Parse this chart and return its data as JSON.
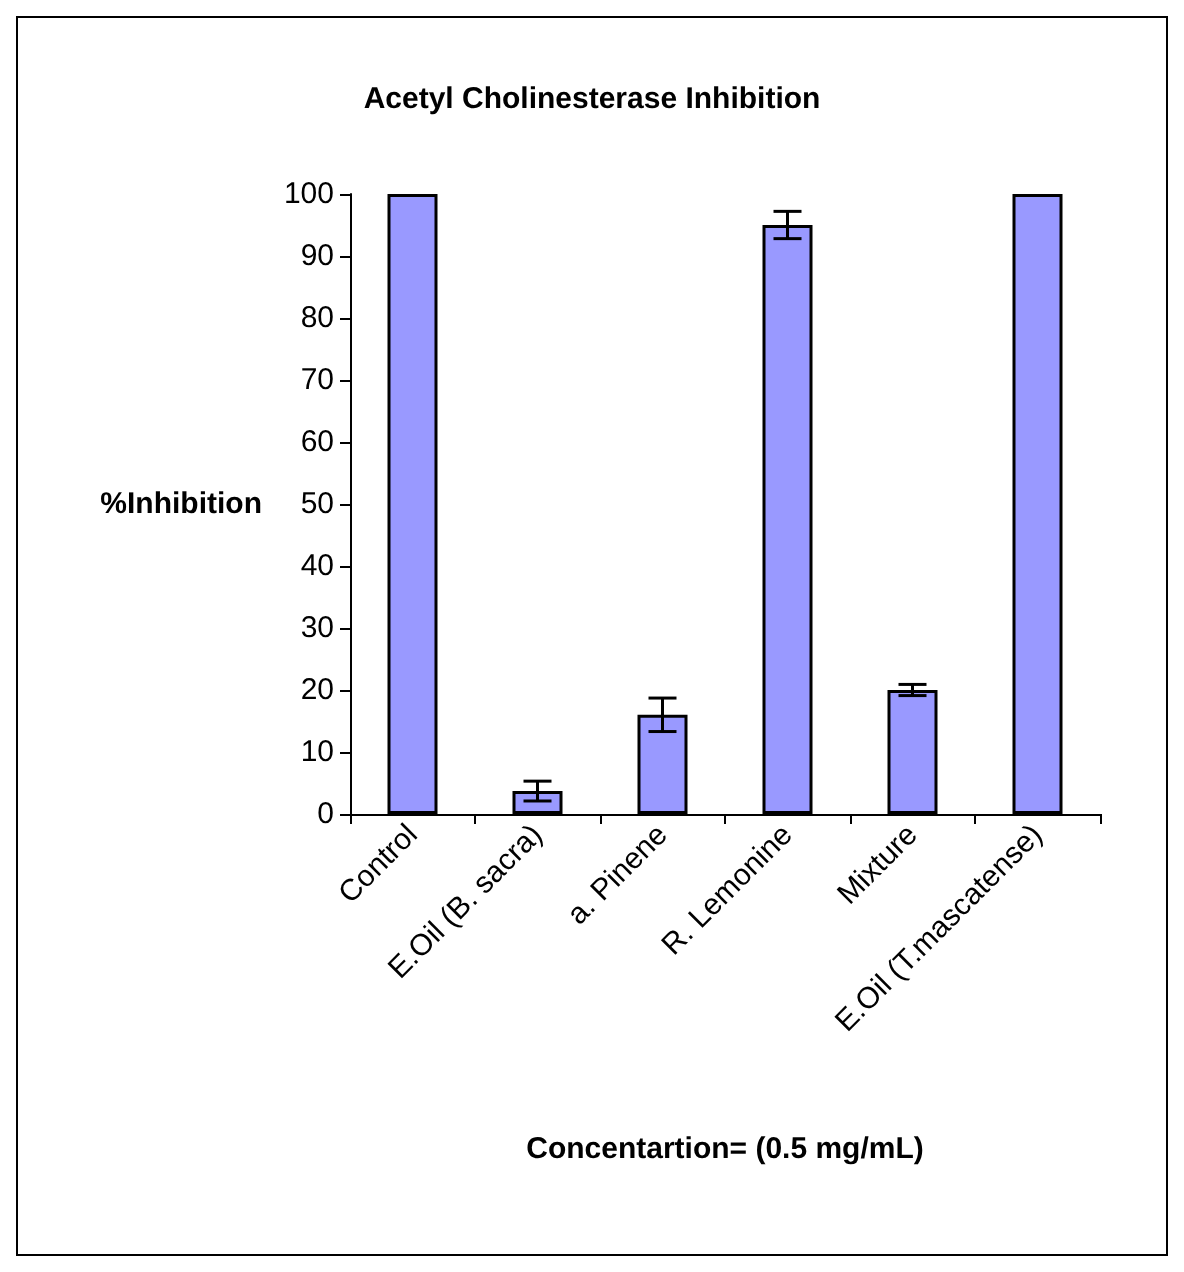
{
  "chart_data": {
    "type": "bar",
    "title": "Acetyl Cholinesterase Inhibition",
    "xlabel": "Concentartion= (0.5 mg/mL)",
    "ylabel": "%Inhibition",
    "categories": [
      "Control",
      "E.Oil (B. sacra)",
      "a. Pinene",
      "R. Lemonine",
      "Mixture",
      "E.Oil (T.mascatense)"
    ],
    "values": [
      100,
      3.7,
      16,
      95,
      20,
      100
    ],
    "errors": [
      null,
      1.6,
      2.7,
      2.2,
      0.9,
      null
    ],
    "color": "#9999ff",
    "ylim": [
      0,
      100
    ],
    "yticks": [
      0,
      10,
      20,
      30,
      40,
      50,
      60,
      70,
      80,
      90,
      100
    ],
    "grid": false
  }
}
